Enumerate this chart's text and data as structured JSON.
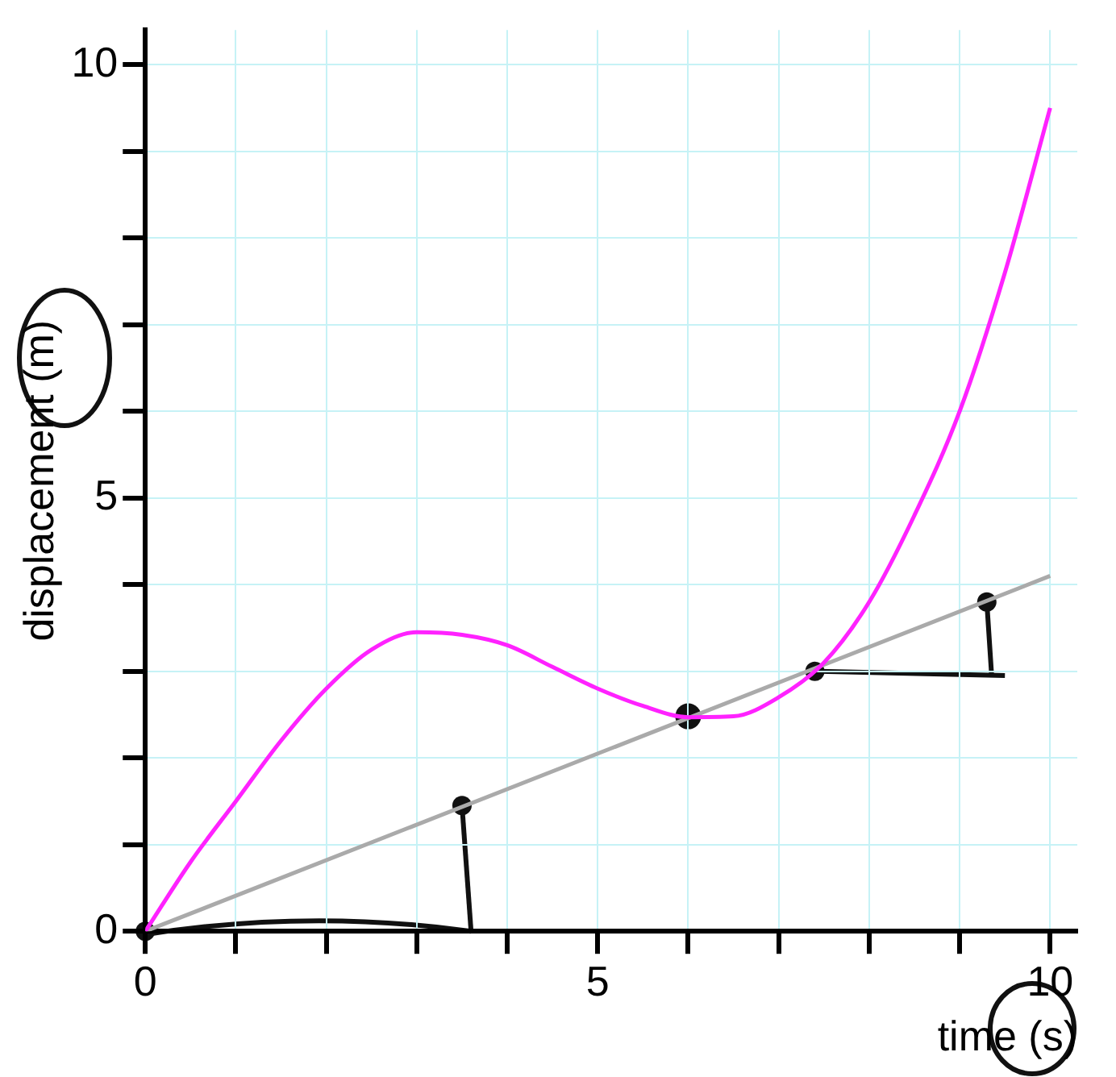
{
  "chart_data": {
    "type": "line",
    "xlabel": "time (s)",
    "ylabel": "displacement (m)",
    "xlim": [
      0,
      10.3
    ],
    "ylim": [
      0,
      10.4
    ],
    "xticks": [
      0,
      {
        "value": 1,
        "label": null
      },
      {
        "value": 2,
        "label": null
      },
      {
        "value": 3,
        "label": null
      },
      {
        "value": 4,
        "label": null
      },
      5,
      {
        "value": 6,
        "label": null
      },
      {
        "value": 7,
        "label": null
      },
      {
        "value": 8,
        "label": null
      },
      {
        "value": 9,
        "label": null
      },
      10
    ],
    "yticks": [
      0,
      {
        "value": 1,
        "label": null
      },
      {
        "value": 2,
        "label": null
      },
      {
        "value": 3,
        "label": null
      },
      {
        "value": 4,
        "label": null
      },
      5,
      {
        "value": 6,
        "label": null
      },
      {
        "value": 7,
        "label": null
      },
      {
        "value": 8,
        "label": null
      },
      {
        "value": 9,
        "label": null
      },
      10
    ],
    "grid": true,
    "marker": "none",
    "line_style": "solid",
    "series": [
      {
        "color": "#ff22ff",
        "x": [
          0,
          0.5,
          1,
          1.5,
          2,
          2.5,
          3,
          3.5,
          4,
          4.5,
          5,
          5.5,
          6,
          6.5,
          7,
          7.5,
          8,
          8.5,
          9,
          9.5,
          10
        ],
        "values": [
          0,
          0.8,
          1.5,
          2.2,
          2.8,
          3.25,
          3.45,
          3.42,
          3.3,
          3.05,
          2.8,
          2.6,
          2.47,
          2.48,
          2.7,
          3.1,
          3.8,
          4.8,
          6.0,
          7.6,
          9.5
        ]
      },
      {
        "color": "#aaaaaa",
        "x": [
          0,
          10
        ],
        "values": [
          0,
          4.1
        ]
      }
    ]
  }
}
